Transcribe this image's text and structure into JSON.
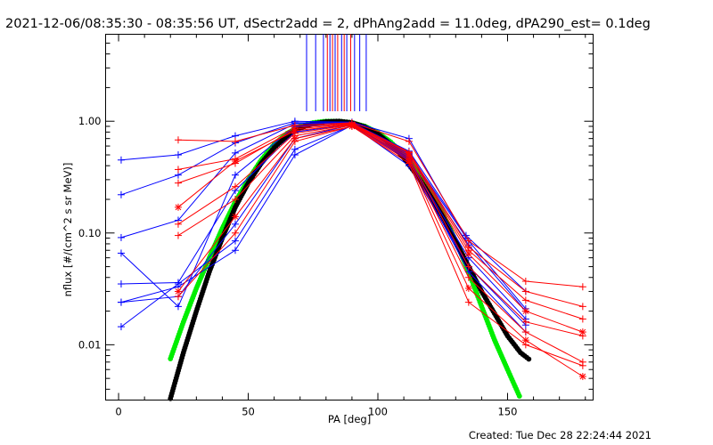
{
  "chart_data": {
    "type": "scatter",
    "title": "2021-12-06/08:35:30 - 08:35:56 UT, dSectr2add = 2, dPhAng2add = 11.0deg, dPA290_est=  0.1deg",
    "xlabel": "PA [deg]",
    "ylabel": "nflux [#/(cm^2 s sr MeV)]",
    "xlim": [
      -5,
      183
    ],
    "ylim": [
      0.0032,
      6.0
    ],
    "yscale": "log",
    "x_ticks": [
      {
        "v": 0,
        "label": "0"
      },
      {
        "v": 50,
        "label": "50"
      },
      {
        "v": 100,
        "label": "100"
      },
      {
        "v": 150,
        "label": "150"
      }
    ],
    "y_ticks": [
      {
        "v": 0.01,
        "label": "0.01"
      },
      {
        "v": 0.1,
        "label": "0.10"
      },
      {
        "v": 1.0,
        "label": "1.00"
      }
    ],
    "grid": false,
    "legend": "none",
    "footer": "Created: Tue Dec 28 22:24:44 2021",
    "colors": {
      "blue": "#0000ff",
      "red": "#ff0000",
      "green": "#00ee00",
      "black": "#000000"
    },
    "vlines": [
      {
        "x": 72.5,
        "color": "#0000ff"
      },
      {
        "x": 76,
        "color": "#0000ff"
      },
      {
        "x": 79,
        "color": "#0000ff"
      },
      {
        "x": 80.5,
        "color": "#ff0000"
      },
      {
        "x": 81.5,
        "color": "#0000ff"
      },
      {
        "x": 82.5,
        "color": "#ff0000"
      },
      {
        "x": 83.5,
        "color": "#0000ff"
      },
      {
        "x": 84.5,
        "color": "#ff0000"
      },
      {
        "x": 86,
        "color": "#0000ff"
      },
      {
        "x": 87,
        "color": "#ff0000"
      },
      {
        "x": 88,
        "color": "#0000ff"
      },
      {
        "x": 89.5,
        "color": "#ff0000"
      },
      {
        "x": 91,
        "color": "#0000ff"
      },
      {
        "x": 93,
        "color": "#0000ff"
      },
      {
        "x": 95.5,
        "color": "#0000ff"
      }
    ],
    "series": [
      {
        "color": "#0000ff",
        "marker": "+",
        "x": [
          1,
          23,
          45,
          68,
          90,
          112,
          134
        ],
        "y": [
          0.45,
          0.5,
          0.74,
          1.0,
          0.98,
          0.7,
          0.09
        ]
      },
      {
        "color": "#0000ff",
        "marker": "+",
        "x": [
          1,
          23,
          45,
          68,
          90,
          112,
          134,
          157
        ],
        "y": [
          0.22,
          0.33,
          0.64,
          0.97,
          0.97,
          0.54,
          0.095,
          0.03
        ]
      },
      {
        "color": "#0000ff",
        "marker": "+",
        "x": [
          1,
          23,
          45,
          68,
          90,
          112,
          135,
          157
        ],
        "y": [
          0.091,
          0.13,
          0.52,
          0.95,
          0.96,
          0.51,
          0.085,
          0.021
        ]
      },
      {
        "color": "#0000ff",
        "marker": "+",
        "x": [
          1,
          23,
          45,
          68,
          90,
          112,
          135,
          157
        ],
        "y": [
          0.066,
          0.022,
          0.33,
          0.9,
          0.95,
          0.49,
          0.078,
          0.02
        ]
      },
      {
        "color": "#0000ff",
        "marker": "+",
        "x": [
          1,
          23,
          45,
          68,
          90,
          112,
          135,
          157
        ],
        "y": [
          0.035,
          0.036,
          0.24,
          0.8,
          0.94,
          0.45,
          0.06,
          0.017
        ]
      },
      {
        "color": "#0000ff",
        "marker": "+",
        "x": [
          1,
          23,
          45,
          68,
          90,
          112,
          135,
          157
        ],
        "y": [
          0.024,
          0.027,
          0.12,
          0.7,
          0.93,
          0.47,
          0.05,
          0.015
        ]
      },
      {
        "color": "#0000ff",
        "marker": "+",
        "x": [
          1,
          23,
          45,
          68,
          90,
          112,
          135,
          157
        ],
        "y": [
          0.0145,
          0.035,
          0.085,
          0.56,
          0.92,
          0.45,
          0.045,
          0.013
        ]
      },
      {
        "color": "#0000ff",
        "marker": "+",
        "x": [
          1,
          23,
          45,
          68,
          90,
          112,
          135,
          157
        ],
        "y": [
          0.024,
          0.033,
          0.07,
          0.5,
          0.92,
          0.4,
          0.05,
          0.016
        ]
      },
      {
        "color": "#ff0000",
        "marker": "+",
        "x": [
          23,
          45,
          68,
          90,
          112,
          135,
          157,
          179
        ],
        "y": [
          0.68,
          0.66,
          0.92,
          0.97,
          0.66,
          0.085,
          0.037,
          0.033
        ]
      },
      {
        "color": "#ff0000",
        "marker": "+",
        "x": [
          23,
          45,
          68,
          90,
          112,
          135,
          157,
          179
        ],
        "y": [
          0.37,
          0.46,
          0.88,
          0.96,
          0.53,
          0.075,
          0.03,
          0.022
        ]
      },
      {
        "color": "#ff0000",
        "marker": "+",
        "x": [
          23,
          45,
          68,
          90,
          112,
          135,
          157,
          179
        ],
        "y": [
          0.28,
          0.42,
          0.85,
          0.95,
          0.52,
          0.07,
          0.025,
          0.017
        ]
      },
      {
        "color": "#ff0000",
        "marker": "*",
        "x": [
          23,
          45,
          68,
          90,
          112,
          135,
          157,
          179
        ],
        "y": [
          0.17,
          0.44,
          0.82,
          0.94,
          0.5,
          0.065,
          0.02,
          0.013
        ]
      },
      {
        "color": "#ff0000",
        "marker": "+",
        "x": [
          23,
          45,
          68,
          90,
          112,
          135,
          157,
          179
        ],
        "y": [
          0.12,
          0.26,
          0.78,
          0.93,
          0.48,
          0.05,
          0.016,
          0.012
        ]
      },
      {
        "color": "#ff0000",
        "marker": "+",
        "x": [
          23,
          45,
          68,
          90,
          112,
          135,
          157,
          179
        ],
        "y": [
          0.095,
          0.2,
          0.74,
          0.92,
          0.46,
          0.04,
          0.013,
          0.007
        ]
      },
      {
        "color": "#ff0000",
        "marker": "*",
        "x": [
          23,
          45,
          68,
          90,
          112,
          135,
          157,
          179
        ],
        "y": [
          0.03,
          0.14,
          0.7,
          0.9,
          0.44,
          0.032,
          0.011,
          0.0052
        ]
      },
      {
        "color": "#ff0000",
        "marker": "+",
        "x": [
          23,
          45,
          68,
          90,
          112,
          135,
          157,
          179
        ],
        "y": [
          0.027,
          0.1,
          0.66,
          0.9,
          0.42,
          0.024,
          0.01,
          0.0065
        ]
      }
    ],
    "fits": [
      {
        "color": "#00ee00",
        "x": [
          20,
          25,
          30,
          35,
          40,
          45,
          50,
          55,
          60,
          65,
          70,
          75,
          80,
          85,
          90,
          95,
          100,
          105,
          110,
          115,
          120,
          125,
          130,
          135,
          140,
          145,
          150,
          155
        ],
        "y": [
          0.0075,
          0.016,
          0.032,
          0.06,
          0.11,
          0.19,
          0.3,
          0.45,
          0.62,
          0.78,
          0.9,
          0.97,
          1.0,
          1.0,
          0.97,
          0.9,
          0.79,
          0.65,
          0.5,
          0.36,
          0.24,
          0.15,
          0.085,
          0.045,
          0.022,
          0.011,
          0.006,
          0.0033
        ]
      },
      {
        "color": "#000000",
        "x": [
          20,
          25,
          30,
          35,
          40,
          45,
          50,
          55,
          60,
          65,
          70,
          75,
          80,
          85,
          90,
          95,
          100,
          105,
          110,
          115,
          120,
          125,
          130,
          135,
          140,
          145,
          150,
          155,
          159
        ],
        "y": [
          0.0033,
          0.0085,
          0.02,
          0.045,
          0.09,
          0.17,
          0.28,
          0.42,
          0.58,
          0.74,
          0.87,
          0.95,
          0.99,
          1.0,
          0.97,
          0.89,
          0.77,
          0.62,
          0.47,
          0.33,
          0.22,
          0.14,
          0.085,
          0.05,
          0.03,
          0.019,
          0.012,
          0.0085,
          0.0072
        ]
      }
    ]
  }
}
